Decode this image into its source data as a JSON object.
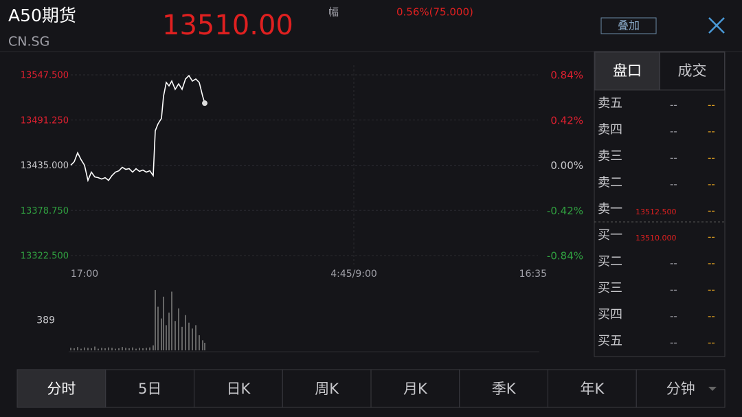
{
  "header": {
    "name": "A50期货",
    "code": "CN.SG",
    "price": "13510.00",
    "change_label": "幅",
    "change": "0.56%(75.000)",
    "overlay_button": "叠加"
  },
  "chart_data": {
    "type": "line",
    "ylim": [
      13322.5,
      13547.5
    ],
    "yticks": [
      {
        "value": 13547.5,
        "label": "13547.500"
      },
      {
        "value": 13491.25,
        "label": "13491.250"
      },
      {
        "value": 13435,
        "label": "13435.000"
      },
      {
        "value": 13378.75,
        "label": "13378.750"
      },
      {
        "value": 13322.5,
        "label": "13322.500"
      }
    ],
    "y2lim": [
      -0.84,
      0.84
    ],
    "y2ticks": [
      {
        "value": 0.84,
        "label": "0.84%"
      },
      {
        "value": 0.42,
        "label": "0.42%"
      },
      {
        "value": 0,
        "label": "0.00%"
      },
      {
        "value": -0.42,
        "label": "-0.42%"
      },
      {
        "value": -0.84,
        "label": "-0.84%"
      }
    ],
    "xlim": [
      0,
      136
    ],
    "x_labels": [
      "17:00",
      "4:45/9:00",
      "16:35"
    ],
    "grid": true,
    "series": [
      {
        "color": "#ffffff",
        "x": [
          0,
          1,
          2,
          3,
          4,
          5,
          6,
          7,
          8,
          9,
          10,
          11,
          12,
          13,
          14,
          15,
          16,
          17,
          18,
          19,
          20,
          21,
          22,
          23,
          24,
          24.6,
          25.4,
          26.4,
          27,
          27.8,
          28.6,
          29.4,
          30.4,
          31.4,
          32.4,
          33.4,
          34.4,
          35.4,
          36.4,
          37.4,
          38.4,
          39
        ],
        "values": [
          13435,
          13439.3,
          13450.5,
          13441.9,
          13435,
          13416.1,
          13426.4,
          13420.4,
          13419.5,
          13417.8,
          13419.5,
          13416.1,
          13422.1,
          13426.4,
          13428.1,
          13432.4,
          13429.8,
          13430.7,
          13426.4,
          13430.7,
          13427.3,
          13429,
          13426.4,
          13428.1,
          13422.1,
          13477.9,
          13486.5,
          13493.4,
          13520.9,
          13538.1,
          13533.8,
          13539.8,
          13529.5,
          13536.3,
          13529.5,
          13542.4,
          13546.6,
          13539.8,
          13542.4,
          13538.1,
          13520.9,
          13512.3
        ]
      }
    ],
    "volume": {
      "ylim": [
        0,
        778
      ],
      "yticks": [
        389
      ],
      "values": [
        30,
        25,
        40,
        20,
        35,
        30,
        25,
        45,
        20,
        30,
        25,
        35,
        30,
        20,
        25,
        40,
        30,
        25,
        35,
        20,
        30,
        25,
        30,
        35,
        60,
        720,
        520,
        380,
        640,
        300,
        450,
        700,
        350,
        500,
        280,
        420,
        330,
        260,
        300,
        180,
        120,
        90
      ]
    }
  },
  "order_book": {
    "tabs": [
      "盘口",
      "成交"
    ],
    "asks": [
      {
        "label": "卖五",
        "price": "--",
        "volume": "--"
      },
      {
        "label": "卖四",
        "price": "--",
        "volume": "--"
      },
      {
        "label": "卖三",
        "price": "--",
        "volume": "--"
      },
      {
        "label": "卖二",
        "price": "--",
        "volume": "--"
      },
      {
        "label": "卖一",
        "price": "13512.500",
        "volume": "--"
      }
    ],
    "bids": [
      {
        "label": "买一",
        "price": "13510.000",
        "volume": "--"
      },
      {
        "label": "买二",
        "price": "--",
        "volume": "--"
      },
      {
        "label": "买三",
        "price": "--",
        "volume": "--"
      },
      {
        "label": "买四",
        "price": "--",
        "volume": "--"
      },
      {
        "label": "买五",
        "price": "--",
        "volume": "--"
      }
    ]
  },
  "bottom_tabs": [
    "分时",
    "5日",
    "日K",
    "周K",
    "月K",
    "季K",
    "年K",
    "分钟"
  ]
}
